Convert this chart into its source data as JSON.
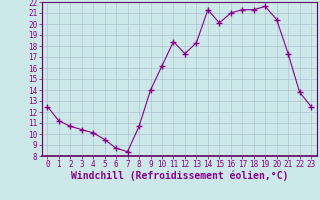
{
  "xlabel": "Windchill (Refroidissement éolien,°C)",
  "x": [
    0,
    1,
    2,
    3,
    4,
    5,
    6,
    7,
    8,
    9,
    10,
    11,
    12,
    13,
    14,
    15,
    16,
    17,
    18,
    19,
    20,
    21,
    22,
    23
  ],
  "y": [
    12.5,
    11.2,
    10.7,
    10.4,
    10.1,
    9.5,
    8.7,
    8.4,
    10.7,
    14.0,
    16.2,
    18.4,
    17.3,
    18.3,
    21.3,
    20.1,
    21.0,
    21.3,
    21.3,
    21.6,
    20.4,
    17.3,
    13.8,
    12.5
  ],
  "line_color": "#880088",
  "marker": "+",
  "marker_size": 4,
  "background_color": "#cce8e8",
  "grid_color": "#aabbcc",
  "ylim": [
    8,
    22
  ],
  "xlim": [
    -0.5,
    23.5
  ],
  "yticks": [
    8,
    9,
    10,
    11,
    12,
    13,
    14,
    15,
    16,
    17,
    18,
    19,
    20,
    21,
    22
  ],
  "xticks": [
    0,
    1,
    2,
    3,
    4,
    5,
    6,
    7,
    8,
    9,
    10,
    11,
    12,
    13,
    14,
    15,
    16,
    17,
    18,
    19,
    20,
    21,
    22,
    23
  ],
  "tick_label_fontsize": 5.5,
  "xlabel_fontsize": 7,
  "xlabel_color": "#880088",
  "axis_color": "#880088",
  "tick_color": "#880088",
  "spine_color": "#660066"
}
